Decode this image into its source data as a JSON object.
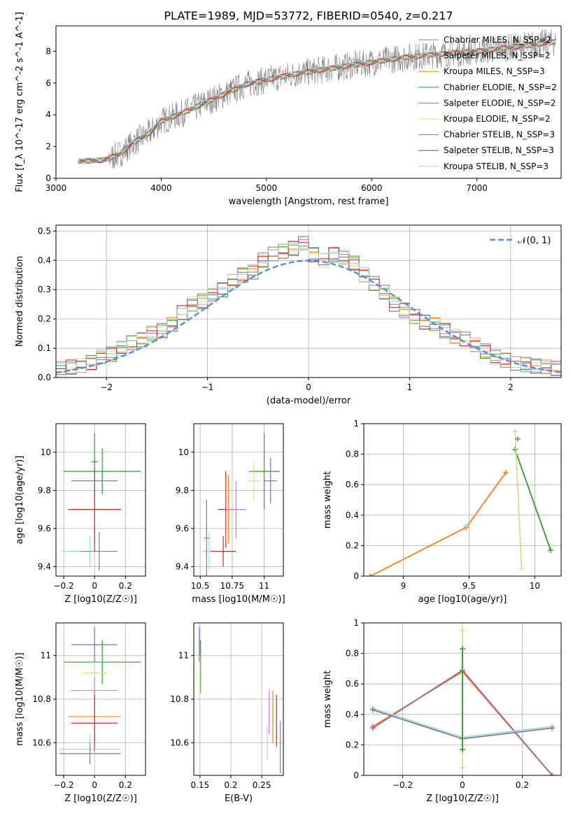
{
  "title": "PLATE=1989, MJD=53772, FIBERID=0540, z=0.217",
  "model_colors": {
    "Chabrier MILES": "#808080",
    "Salpeter MILES": "#e377c2",
    "Kroupa MILES": "#ff7f0e",
    "Chabrier ELODIE": "#2ca02c",
    "Salpeter ELODIE": "#9467bd",
    "Kroupa ELODIE": "#dbdb8d",
    "Chabrier STELIB": "#7f7f7f",
    "Salpeter STELIB": "#d62728",
    "Kroupa STELIB": "#9edae5"
  },
  "chart_data": [
    {
      "id": "spectrum",
      "type": "line",
      "xlabel": "wavelength [Angstrom, rest frame]",
      "ylabel": "Flux [f_λ 10^-17 erg cm^-2 s^-1 A^-1]",
      "xlim": [
        3000,
        7800
      ],
      "ylim": [
        0,
        9.6
      ],
      "xticks": [
        3000,
        4000,
        5000,
        6000,
        7000
      ],
      "yticks": [
        0,
        2,
        4,
        6,
        8
      ],
      "grid": false,
      "legend_position": "top-right",
      "spectrum_trend": {
        "x": [
          3200,
          3450,
          3600,
          3750,
          3900,
          4000,
          4200,
          4500,
          4800,
          5000,
          5300,
          5600,
          6000,
          6300,
          6600,
          7000,
          7400,
          7750
        ],
        "y": [
          1.05,
          1.15,
          1.5,
          2.3,
          2.9,
          3.6,
          4.1,
          5.0,
          5.9,
          6.2,
          6.6,
          6.9,
          7.3,
          7.6,
          7.8,
          8.0,
          8.3,
          8.6
        ]
      },
      "series": [
        {
          "name": "Chabrier MILES, N_SSP=2",
          "color": "#808080"
        },
        {
          "name": "Salpeter MILES, N_SSP=2",
          "color": "#e377c2"
        },
        {
          "name": "Kroupa MILES, N_SSP=3",
          "color": "#ff7f0e"
        },
        {
          "name": "Chabrier ELODIE, N_SSP=2",
          "color": "#2ca02c"
        },
        {
          "name": "Salpeter ELODIE, N_SSP=2",
          "color": "#9467bd"
        },
        {
          "name": "Kroupa ELODIE, N_SSP=2",
          "color": "#dbdb8d"
        },
        {
          "name": "Chabrier STELIB, N_SSP=3",
          "color": "#7f7f7f"
        },
        {
          "name": "Salpeter STELIB, N_SSP=3",
          "color": "#d62728"
        },
        {
          "name": "Kroupa STELIB, N_SSP=3",
          "color": "#9edae5"
        }
      ]
    },
    {
      "id": "residuals",
      "type": "line",
      "xlabel": "(data-model)/error",
      "ylabel": "Normed distribution",
      "xlim": [
        -2.5,
        2.5
      ],
      "ylim": [
        0,
        0.52
      ],
      "xticks": [
        -2,
        -1,
        0,
        1,
        2
      ],
      "yticks": [
        0.0,
        0.1,
        0.2,
        0.3,
        0.4,
        0.5
      ],
      "grid": true,
      "legend_position": "top-right",
      "legend": "𝒩(0, 1)",
      "gaussian_color": "#5b8dd9",
      "hist_bin_edges": [
        -2.5,
        -2.4,
        -2.3,
        -2.2,
        -2.1,
        -2.0,
        -1.9,
        -1.8,
        -1.7,
        -1.6,
        -1.5,
        -1.4,
        -1.3,
        -1.2,
        -1.1,
        -1.0,
        -0.9,
        -0.8,
        -0.7,
        -0.6,
        -0.5,
        -0.4,
        -0.3,
        -0.2,
        -0.1,
        0.0,
        0.1,
        0.2,
        0.3,
        0.4,
        0.5,
        0.6,
        0.7,
        0.8,
        0.9,
        1.0,
        1.1,
        1.2,
        1.3,
        1.4,
        1.5,
        1.6,
        1.7,
        1.8,
        1.9,
        2.0,
        2.1,
        2.2,
        2.3,
        2.4,
        2.5
      ],
      "hist_values": [
        0.03,
        0.035,
        0.04,
        0.05,
        0.07,
        0.08,
        0.1,
        0.12,
        0.13,
        0.15,
        0.16,
        0.18,
        0.22,
        0.25,
        0.26,
        0.28,
        0.3,
        0.33,
        0.35,
        0.36,
        0.4,
        0.42,
        0.43,
        0.44,
        0.46,
        0.42,
        0.4,
        0.42,
        0.41,
        0.39,
        0.35,
        0.32,
        0.29,
        0.25,
        0.23,
        0.21,
        0.19,
        0.18,
        0.16,
        0.14,
        0.13,
        0.11,
        0.09,
        0.07,
        0.06,
        0.05,
        0.045,
        0.04,
        0.035,
        0.03
      ]
    },
    {
      "id": "age_vs_Z",
      "type": "scatter",
      "xlabel": "Z [log10(Z/Z☉)]",
      "ylabel": "age  [log10(age/yr)]",
      "xlim": [
        -0.25,
        0.33
      ],
      "ylim": [
        9.35,
        10.15
      ],
      "xticks": [
        -0.2,
        0.0,
        0.2
      ],
      "yticks": [
        9.4,
        9.6,
        9.8,
        10.0
      ],
      "grid": true,
      "points": [
        {
          "x": 0.05,
          "y": 9.9,
          "xerr": 0.25,
          "yerr": 0.12,
          "color": "#2ca02c"
        },
        {
          "x": 0.0,
          "y": 9.85,
          "xerr": 0.15,
          "yerr": 0.06,
          "color": "#9467bd"
        },
        {
          "x": 0.0,
          "y": 9.7,
          "xerr": 0.17,
          "yerr": 0.18,
          "color": "#ff7f0e"
        },
        {
          "x": 0.0,
          "y": 9.7,
          "xerr": 0.17,
          "yerr": 0.22,
          "color": "#d62728"
        },
        {
          "x": -0.03,
          "y": 9.48,
          "xerr": 0.18,
          "yerr": 0.08,
          "color": "#9edae5"
        },
        {
          "x": 0.03,
          "y": 9.48,
          "xerr": 0.12,
          "yerr": 0.1,
          "color": "#808080"
        },
        {
          "x": 0.0,
          "y": 9.95,
          "xerr": 0.02,
          "yerr": 0.15,
          "color": "#2ca02c"
        }
      ]
    },
    {
      "id": "age_vs_mass",
      "type": "scatter",
      "xlabel": "mass [log10(M/M☉)]",
      "ylabel": "",
      "xlim": [
        10.45,
        11.15
      ],
      "ylim": [
        9.35,
        10.15
      ],
      "xticks": [
        10.5,
        10.75,
        11.0
      ],
      "yticks": [
        9.4,
        9.6,
        9.8,
        10.0
      ],
      "grid": true,
      "points": [
        {
          "x": 11.0,
          "y": 9.9,
          "xerr": 0.12,
          "yerr": 0.2,
          "color": "#2ca02c"
        },
        {
          "x": 11.05,
          "y": 9.85,
          "xerr": 0.05,
          "yerr": 0.12,
          "color": "#9467bd"
        },
        {
          "x": 10.92,
          "y": 9.85,
          "xerr": 0.05,
          "yerr": 0.1,
          "color": "#dbdb8d"
        },
        {
          "x": 10.72,
          "y": 9.7,
          "xerr": 0.08,
          "yerr": 0.18,
          "color": "#ff7f0e"
        },
        {
          "x": 10.7,
          "y": 9.7,
          "xerr": 0.06,
          "yerr": 0.2,
          "color": "#d62728"
        },
        {
          "x": 10.78,
          "y": 9.7,
          "xerr": 0.08,
          "yerr": 0.15,
          "color": "#e377c2"
        },
        {
          "x": 10.57,
          "y": 9.48,
          "xerr": 0.05,
          "yerr": 0.1,
          "color": "#9edae5"
        },
        {
          "x": 10.68,
          "y": 9.48,
          "xerr": 0.1,
          "yerr": 0.08,
          "color": "#d62728"
        },
        {
          "x": 10.55,
          "y": 9.55,
          "xerr": 0.02,
          "yerr": 0.2,
          "color": "#808080"
        }
      ]
    },
    {
      "id": "mass_weight_vs_age",
      "type": "line",
      "xlabel": "age  [log10(age/yr)]",
      "ylabel": "mass weight",
      "xlim": [
        8.7,
        10.2
      ],
      "ylim": [
        0.0,
        1.0
      ],
      "xticks": [
        9.0,
        9.5,
        10.0
      ],
      "yticks": [
        0.0,
        0.2,
        0.4,
        0.6,
        0.8,
        1.0
      ],
      "grid": true,
      "series": [
        {
          "x": [
            8.75,
            9.48,
            9.78
          ],
          "y": [
            0.0,
            0.32,
            0.68
          ],
          "color": "#ff7f0e"
        },
        {
          "x": [
            9.85,
            10.12
          ],
          "y": [
            0.83,
            0.17
          ],
          "color": "#2ca02c"
        },
        {
          "x": [
            9.85,
            9.9
          ],
          "y": [
            0.95,
            0.05
          ],
          "color": "#dbdb8d"
        },
        {
          "x": [
            9.48
          ],
          "y": [
            0.33
          ],
          "color": "#9edae5"
        },
        {
          "x": [
            9.87
          ],
          "y": [
            0.9
          ],
          "color": "#9467bd"
        }
      ]
    },
    {
      "id": "mass_vs_Z",
      "type": "scatter",
      "xlabel": "Z [log10(Z/Z☉)]",
      "ylabel": "mass [log10(M/M☉)]",
      "xlim": [
        -0.25,
        0.33
      ],
      "ylim": [
        10.45,
        11.15
      ],
      "xticks": [
        -0.2,
        0.0,
        0.2
      ],
      "yticks": [
        10.6,
        10.8,
        11.0
      ],
      "grid": true,
      "points": [
        {
          "x": 0.0,
          "y": 11.05,
          "xerr": 0.15,
          "yerr": 0.08,
          "color": "#9467bd"
        },
        {
          "x": 0.05,
          "y": 10.97,
          "xerr": 0.25,
          "yerr": 0.1,
          "color": "#2ca02c"
        },
        {
          "x": 0.0,
          "y": 10.92,
          "xerr": 0.08,
          "yerr": 0.05,
          "color": "#dbdb8d"
        },
        {
          "x": 0.0,
          "y": 10.84,
          "xerr": 0.15,
          "yerr": 0.06,
          "color": "#e377c2"
        },
        {
          "x": 0.0,
          "y": 10.72,
          "xerr": 0.17,
          "yerr": 0.12,
          "color": "#ff7f0e"
        },
        {
          "x": 0.0,
          "y": 10.69,
          "xerr": 0.15,
          "yerr": 0.13,
          "color": "#d62728"
        },
        {
          "x": -0.03,
          "y": 10.57,
          "xerr": 0.2,
          "yerr": 0.07,
          "color": "#9edae5"
        },
        {
          "x": -0.03,
          "y": 10.55,
          "xerr": 0.2,
          "yerr": 0.05,
          "color": "#808080"
        }
      ]
    },
    {
      "id": "mass_vs_ebv",
      "type": "scatter",
      "xlabel": "E(B-V)",
      "ylabel": "",
      "xlim": [
        0.14,
        0.285
      ],
      "ylim": [
        10.45,
        11.15
      ],
      "xticks": [
        0.15,
        0.2,
        0.25
      ],
      "yticks": [
        10.6,
        10.8,
        11.0
      ],
      "grid": true,
      "points": [
        {
          "x": 0.149,
          "y": 11.05,
          "xerr": 0.0,
          "yerr": 0.08,
          "color": "#9467bd"
        },
        {
          "x": 0.151,
          "y": 10.95,
          "xerr": 0.0,
          "yerr": 0.12,
          "color": "#2ca02c"
        },
        {
          "x": 0.15,
          "y": 10.9,
          "xerr": 0.0,
          "yerr": 0.1,
          "color": "#dbdb8d"
        },
        {
          "x": 0.262,
          "y": 10.74,
          "xerr": 0.0,
          "yerr": 0.1,
          "color": "#e377c2"
        },
        {
          "x": 0.268,
          "y": 10.72,
          "xerr": 0.0,
          "yerr": 0.12,
          "color": "#ff7f0e"
        },
        {
          "x": 0.274,
          "y": 10.7,
          "xerr": 0.0,
          "yerr": 0.12,
          "color": "#d62728"
        },
        {
          "x": 0.259,
          "y": 10.6,
          "xerr": 0.0,
          "yerr": 0.08,
          "color": "#9edae5"
        },
        {
          "x": 0.28,
          "y": 10.58,
          "xerr": 0.0,
          "yerr": 0.12,
          "color": "#808080"
        }
      ]
    },
    {
      "id": "mass_weight_vs_Z",
      "type": "line",
      "xlabel": "Z [log10(Z/Z☉)]",
      "ylabel": "mass weight",
      "xlim": [
        -0.33,
        0.33
      ],
      "ylim": [
        0.0,
        1.0
      ],
      "xticks": [
        -0.2,
        0.0,
        0.2
      ],
      "yticks": [
        0.0,
        0.2,
        0.4,
        0.6,
        0.8,
        1.0
      ],
      "grid": true,
      "series": [
        {
          "x": [
            -0.3,
            0.0,
            0.3
          ],
          "y": [
            0.32,
            0.68,
            0.0
          ],
          "color": "#ff7f0e"
        },
        {
          "x": [
            -0.3,
            0.0,
            0.3
          ],
          "y": [
            0.31,
            0.69,
            0.0
          ],
          "color": "#9467bd"
        },
        {
          "x": [
            -0.3,
            0.0,
            0.3
          ],
          "y": [
            0.44,
            0.25,
            0.32
          ],
          "color": "#9edae5"
        },
        {
          "x": [
            -0.3,
            0.0,
            0.3
          ],
          "y": [
            0.43,
            0.24,
            0.31
          ],
          "color": "#808080"
        },
        {
          "x": [
            0.0,
            0.0
          ],
          "y": [
            0.05,
            0.95
          ],
          "color": "#dbdb8d"
        },
        {
          "x": [
            0.0,
            0.0
          ],
          "y": [
            0.17,
            0.83
          ],
          "color": "#2ca02c"
        }
      ]
    }
  ]
}
